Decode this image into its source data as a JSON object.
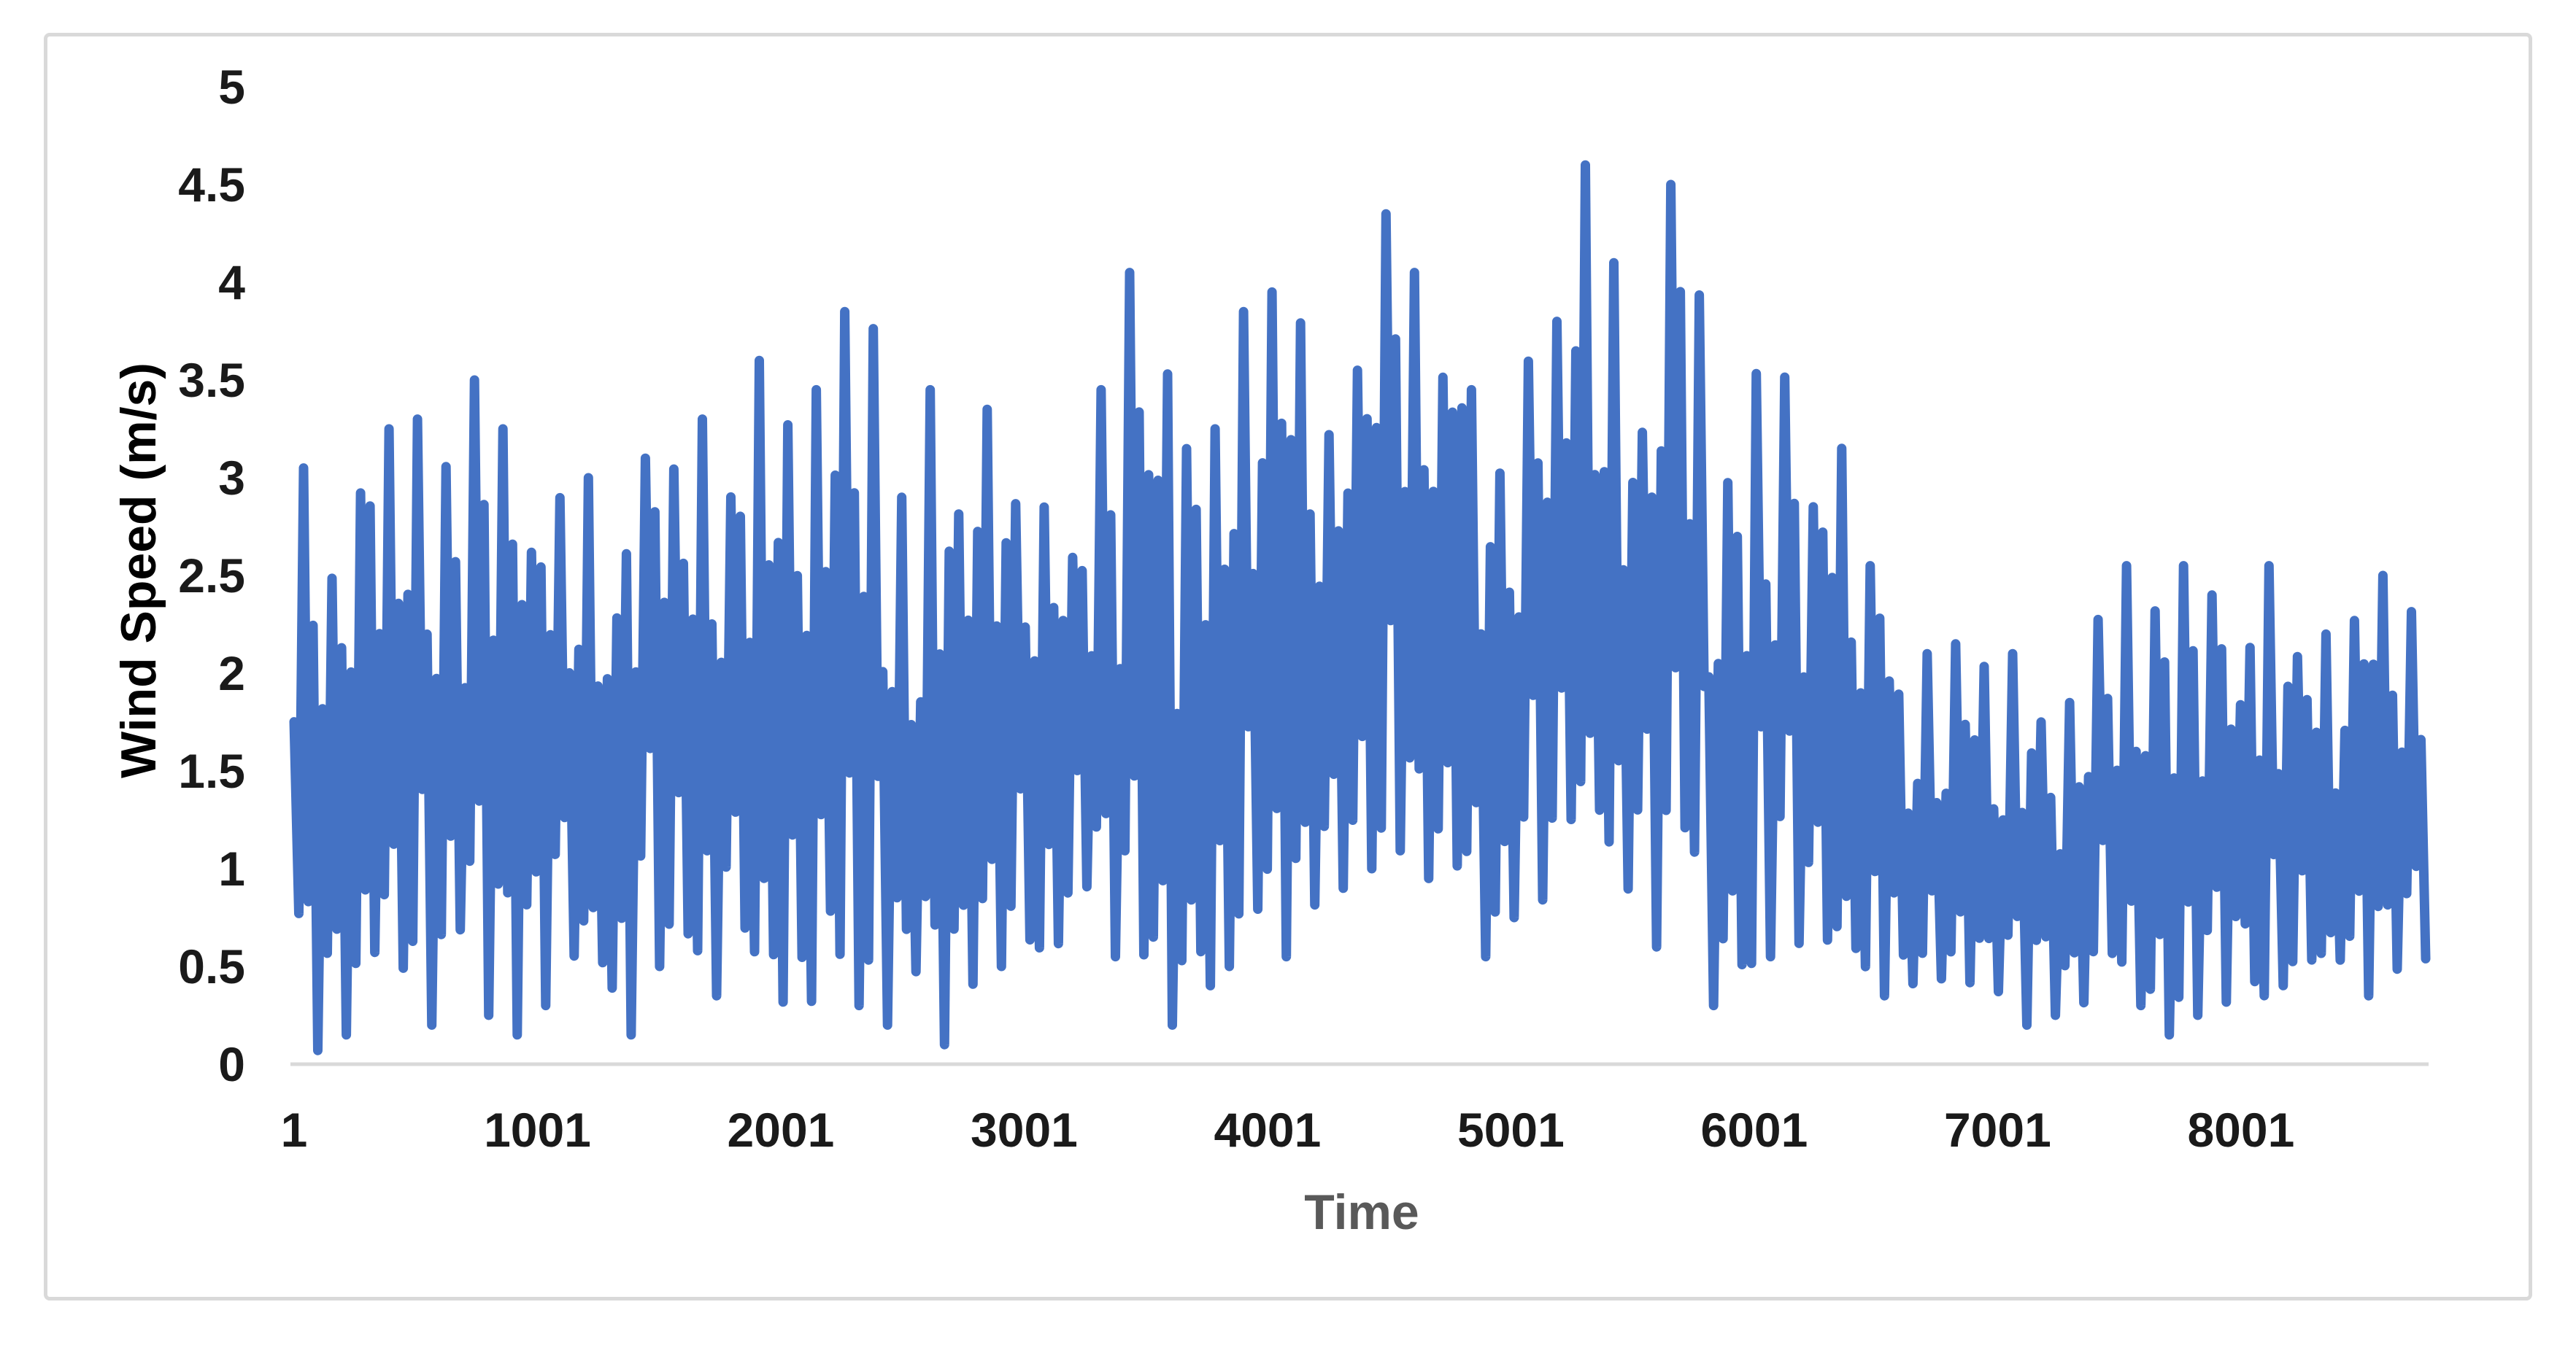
{
  "chart": {
    "y_axis_title": "Wind Speed (m/s)",
    "x_axis_title": "Time",
    "colors": {
      "series": "#4472C4",
      "axis_line": "#D9D9D9",
      "frame_border": "#D9D9D9",
      "tick_label": "#1a1a1a",
      "x_axis_title": "#595959",
      "y_axis_title": "#000000",
      "background": "#FFFFFF"
    }
  },
  "chart_data": {
    "type": "line",
    "title": "",
    "xlabel": "Time",
    "ylabel": "Wind Speed (m/s)",
    "x_range": [
      1,
      8760
    ],
    "ylim": [
      0,
      5
    ],
    "grid": false,
    "legend": false,
    "x_ticks": {
      "values": [
        1,
        1001,
        2001,
        3001,
        4001,
        5001,
        6001,
        7001,
        8001
      ],
      "labels": [
        "1",
        "1001",
        "2001",
        "3001",
        "4001",
        "5001",
        "6001",
        "7001",
        "8001"
      ]
    },
    "y_ticks": {
      "values": [
        0,
        0.5,
        1,
        1.5,
        2,
        2.5,
        3,
        3.5,
        4,
        4.5,
        5
      ],
      "labels": [
        "0",
        "0.5",
        "1",
        "1.5",
        "2",
        "2.5",
        "3",
        "3.5",
        "4",
        "4.5",
        "5"
      ]
    },
    "series": [
      {
        "name": "Wind Speed (m/s)",
        "color": "#4472C4",
        "style": "dense-noisy-line",
        "envelope_bucket_size": 200,
        "envelope": [
          [
            0.07,
            3.05
          ],
          [
            0.15,
            3.25
          ],
          [
            0.2,
            3.3
          ],
          [
            0.25,
            3.5
          ],
          [
            0.15,
            3.25
          ],
          [
            0.3,
            3.3
          ],
          [
            0.15,
            3.0
          ],
          [
            0.5,
            3.4
          ],
          [
            0.35,
            3.3
          ],
          [
            0.25,
            3.6
          ],
          [
            0.1,
            3.45
          ],
          [
            0.3,
            3.85
          ],
          [
            0.2,
            2.9
          ],
          [
            0.1,
            3.45
          ],
          [
            0.5,
            3.35
          ],
          [
            0.3,
            2.85
          ],
          [
            0.55,
            3.45
          ],
          [
            0.15,
            4.05
          ],
          [
            0.2,
            3.25
          ],
          [
            0.5,
            3.85
          ],
          [
            0.55,
            3.95
          ],
          [
            0.9,
            3.55
          ],
          [
            1.0,
            4.35
          ],
          [
            0.95,
            4.05
          ],
          [
            0.55,
            3.45
          ],
          [
            0.75,
            3.8
          ],
          [
            0.9,
            4.6
          ],
          [
            0.6,
            4.1
          ],
          [
            0.8,
            4.5
          ],
          [
            0.3,
            3.2
          ],
          [
            0.55,
            3.65
          ],
          [
            0.35,
            3.15
          ],
          [
            0.35,
            2.55
          ],
          [
            0.2,
            2.1
          ],
          [
            0.15,
            2.15
          ],
          [
            0.2,
            2.1
          ],
          [
            0.25,
            1.85
          ],
          [
            0.3,
            2.55
          ],
          [
            0.15,
            2.55
          ],
          [
            0.25,
            2.4
          ],
          [
            0.1,
            2.55
          ],
          [
            0.3,
            2.2
          ],
          [
            0.35,
            2.5
          ],
          [
            0.3,
            2.6
          ]
        ],
        "observed_extremes": {
          "max_value": 4.6,
          "max_at_x": 5250,
          "secondary_peaks": [
            {
              "x": 4560,
              "value": 4.35
            },
            {
              "x": 5730,
              "value": 4.5
            },
            {
              "x": 3420,
              "value": 4.05
            }
          ],
          "min_value": 0.05
        }
      }
    ]
  }
}
